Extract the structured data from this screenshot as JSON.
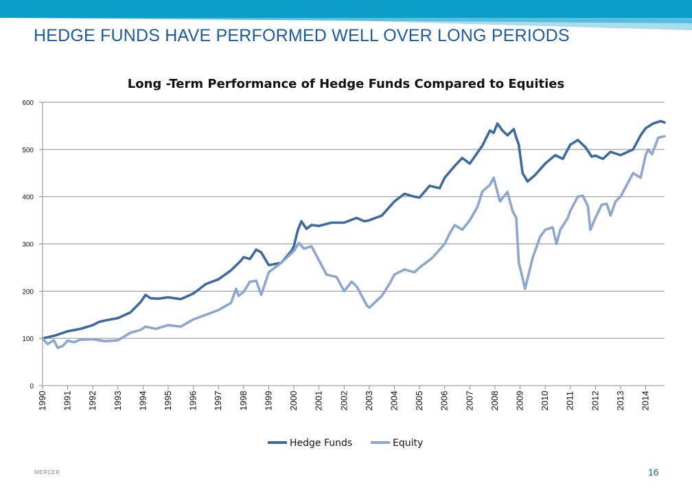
{
  "slide": {
    "title": "HEDGE FUNDS HAVE PERFORMED WELL OVER LONG PERIODS",
    "footer_brand": "MERCER",
    "page_number": "16",
    "colors": {
      "band_dark": "#0a9ec8",
      "band_light": "#a8dcee",
      "title": "#1a5aa0"
    }
  },
  "chart_data": {
    "type": "line",
    "title": "Long -Term Performance of Hedge Funds Compared to Equities",
    "xlabel": "",
    "ylabel": "",
    "ylim": [
      0,
      600
    ],
    "yticks": [
      0,
      100,
      200,
      300,
      400,
      500,
      600
    ],
    "xticks": [
      "1990",
      "1991",
      "1992",
      "1993",
      "1994",
      "1995",
      "1996",
      "1997",
      "1998",
      "1999",
      "2000",
      "2001",
      "2002",
      "2003",
      "2004",
      "2005",
      "2006",
      "2007",
      "2008",
      "2009",
      "2010",
      "2011",
      "2012",
      "2013",
      "2014"
    ],
    "xlim": [
      1990,
      2014.75
    ],
    "grid": true,
    "legend_position": "bottom",
    "series": [
      {
        "name": "Hedge Funds",
        "color": "#3b6aa1",
        "x": [
          1990,
          1990.5,
          1991,
          1991.5,
          1992,
          1992.25,
          1992.5,
          1993,
          1993.5,
          1993.9,
          1994.1,
          1994.3,
          1994.6,
          1995,
          1995.5,
          1996,
          1996.5,
          1997,
          1997.5,
          1997.9,
          1998,
          1998.25,
          1998.5,
          1998.7,
          1999,
          1999.5,
          1999.9,
          2000,
          2000.15,
          2000.3,
          2000.5,
          2000.7,
          2001,
          2001.5,
          2002,
          2002.5,
          2002.8,
          2003,
          2003.5,
          2004,
          2004.4,
          2004.8,
          2005,
          2005.4,
          2005.8,
          2006,
          2006.4,
          2006.7,
          2007,
          2007.5,
          2007.8,
          2007.95,
          2008.1,
          2008.3,
          2008.5,
          2008.75,
          2008.85,
          2008.95,
          2009.1,
          2009.3,
          2009.6,
          2010,
          2010.4,
          2010.7,
          2011,
          2011.3,
          2011.6,
          2011.85,
          2012,
          2012.3,
          2012.6,
          2013,
          2013.5,
          2013.8,
          2014,
          2014.3,
          2014.6,
          2014.75
        ],
        "values": [
          100,
          106,
          115,
          120,
          128,
          135,
          138,
          143,
          155,
          177,
          192,
          185,
          184,
          187,
          183,
          195,
          215,
          225,
          244,
          265,
          272,
          268,
          288,
          282,
          255,
          260,
          285,
          295,
          328,
          348,
          332,
          340,
          338,
          345,
          345,
          355,
          348,
          350,
          360,
          390,
          406,
          400,
          398,
          423,
          418,
          440,
          465,
          482,
          470,
          508,
          540,
          535,
          555,
          540,
          530,
          543,
          525,
          510,
          450,
          432,
          446,
          470,
          488,
          480,
          510,
          520,
          505,
          485,
          487,
          480,
          495,
          488,
          500,
          530,
          545,
          555,
          560,
          557
        ]
      },
      {
        "name": "Equity",
        "color": "#8ca6cf",
        "x": [
          1990,
          1990.2,
          1990.45,
          1990.6,
          1990.8,
          1991,
          1991.25,
          1991.5,
          1992,
          1992.5,
          1993,
          1993.5,
          1993.9,
          1994.1,
          1994.5,
          1995,
          1995.5,
          1996,
          1996.5,
          1997,
          1997.5,
          1997.7,
          1997.8,
          1998,
          1998.25,
          1998.5,
          1998.7,
          1999,
          1999.5,
          2000,
          2000.2,
          2000.4,
          2000.7,
          2001,
          2001.3,
          2001.7,
          2002,
          2002.3,
          2002.5,
          2002.7,
          2002.9,
          2003,
          2003.3,
          2003.5,
          2003.8,
          2004,
          2004.4,
          2004.8,
          2005,
          2005.5,
          2006,
          2006.2,
          2006.4,
          2006.7,
          2007,
          2007.3,
          2007.5,
          2007.8,
          2007.95,
          2008.2,
          2008.5,
          2008.7,
          2008.85,
          2008.95,
          2009.05,
          2009.2,
          2009.5,
          2009.8,
          2010,
          2010.3,
          2010.45,
          2010.6,
          2010.9,
          2011,
          2011.3,
          2011.5,
          2011.7,
          2011.8,
          2012,
          2012.25,
          2012.45,
          2012.6,
          2012.8,
          2013,
          2013.3,
          2013.5,
          2013.8,
          2014,
          2014.1,
          2014.25,
          2014.5,
          2014.75
        ],
        "values": [
          100,
          88,
          96,
          80,
          84,
          95,
          92,
          97,
          98,
          94,
          96,
          112,
          118,
          125,
          120,
          128,
          125,
          140,
          150,
          160,
          175,
          205,
          190,
          198,
          220,
          222,
          192,
          240,
          260,
          285,
          302,
          290,
          295,
          265,
          235,
          230,
          200,
          220,
          210,
          190,
          170,
          165,
          180,
          190,
          215,
          235,
          246,
          240,
          250,
          270,
          300,
          322,
          340,
          330,
          350,
          378,
          411,
          425,
          440,
          390,
          410,
          370,
          355,
          260,
          240,
          205,
          270,
          315,
          330,
          335,
          300,
          330,
          355,
          370,
          400,
          402,
          380,
          330,
          355,
          383,
          385,
          360,
          390,
          400,
          430,
          450,
          440,
          488,
          500,
          490,
          525,
          528
        ]
      }
    ]
  }
}
